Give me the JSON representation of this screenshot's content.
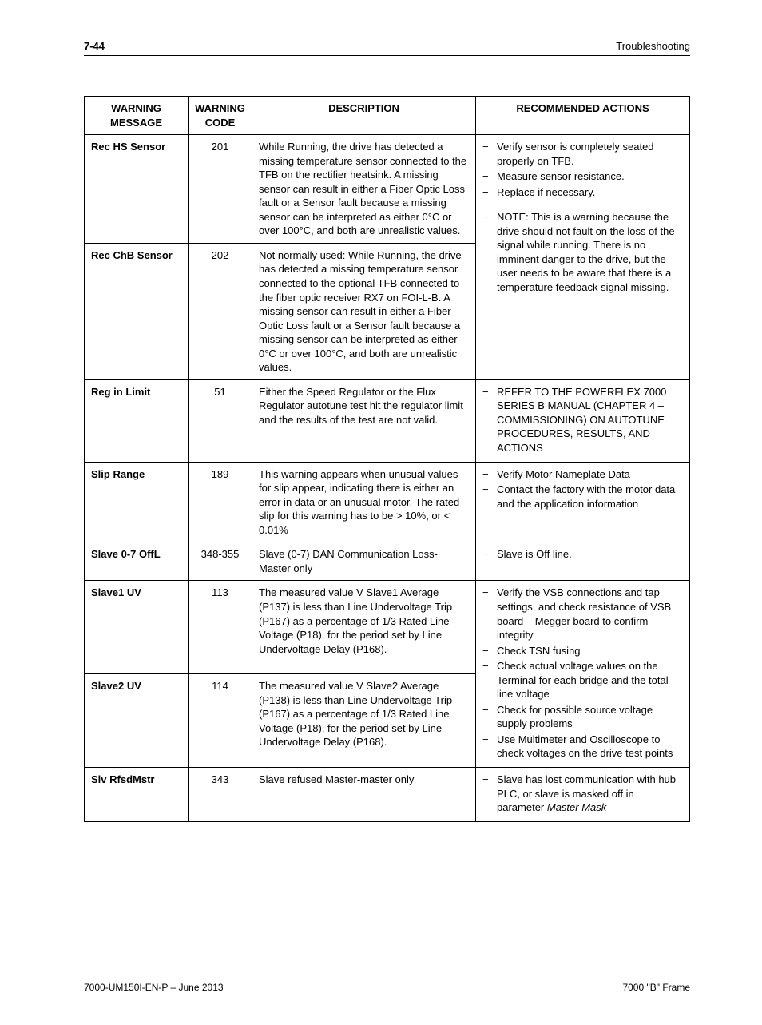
{
  "header": {
    "page_number": "7-44",
    "section_title": "Troubleshooting"
  },
  "table": {
    "columns": [
      "WARNING MESSAGE",
      "WARNING CODE",
      "DESCRIPTION",
      "RECOMMENDED ACTIONS"
    ],
    "rows": [
      {
        "msg": "Rec HS Sensor",
        "code": "201",
        "desc": "While Running, the drive has detected a missing temperature sensor connected to the TFB on the rectifier heatsink.  A missing sensor can result in either a Fiber Optic Loss fault or a Sensor fault because a missing sensor can be interpreted as either 0°C or over 100°C, and both are unrealistic values.",
        "act": [
          "Verify sensor is completely seated properly on TFB.",
          "Measure sensor resistance.",
          " Replace if necessary.",
          "",
          " NOTE: This is a warning because the drive should not fault on the loss of the signal while running.  There is no imminent danger to the drive, but the user needs to be aware that there is a temperature feedback signal missing."
        ],
        "act_rowspan": 2
      },
      {
        "msg": "Rec ChB Sensor",
        "code": "202",
        "desc": "Not normally used:  While Running, the drive has detected a missing temperature sensor connected to the optional TFB connected to the fiber optic receiver RX7 on FOI-L-B.  A missing sensor can result in either a Fiber Optic Loss fault or a Sensor fault because a missing sensor can be interpreted as either 0°C or over 100°C, and both are unrealistic values."
      },
      {
        "msg": "Reg in Limit",
        "code": "51",
        "desc": "Either the Speed Regulator or the Flux Regulator autotune test hit the regulator limit and the results of the test are not valid.",
        "act": [
          " REFER TO THE POWERFLEX 7000 SERIES B MANUAL (CHAPTER 4 – COMMISSIONING) ON AUTOTUNE PROCEDURES, RESULTS, AND ACTIONS"
        ]
      },
      {
        "msg": "Slip Range",
        "code": "189",
        "desc": "This warning appears when unusual values for slip appear, indicating there is either an error in data or an unusual motor.  The rated slip for this warning has to be > 10%, or < 0.01%",
        "act": [
          " Verify Motor Nameplate Data",
          " Contact the factory with the motor data and the application information"
        ]
      },
      {
        "msg": "Slave 0-7 OffL",
        "code": "348-355",
        "desc": "Slave (0-7) DAN Communication Loss-Master only",
        "act": [
          " Slave is Off line."
        ]
      },
      {
        "msg": "Slave1 UV",
        "code": "113",
        "desc": "The measured value V Slave1 Average (P137) is less than Line Undervoltage Trip (P167) as a percentage of 1/3 Rated Line Voltage (P18), for the period set by Line Undervoltage Delay (P168).",
        "act": [
          " Verify the VSB connections and tap settings, and check resistance of VSB board – Megger board to confirm integrity",
          " Check TSN fusing",
          " Check actual voltage values on the Terminal for each bridge and the total line voltage",
          " Check for possible source voltage supply problems",
          " Use Multimeter and Oscilloscope to check voltages on the drive test points"
        ],
        "act_rowspan": 2
      },
      {
        "msg": "Slave2 UV",
        "code": "114",
        "desc": "The measured value V Slave2 Average (P138) is less than Line Undervoltage Trip (P167) as a percentage of 1/3 Rated Line Voltage (P18), for the period set by Line Undervoltage Delay (P168)."
      },
      {
        "msg": "Slv RfsdMstr",
        "code": "343",
        "desc": "Slave refused Master-master only",
        "act_html": "Slave has  lost communication with hub PLC, or slave is masked off in parameter <span class=\"italic\">Master Mask</span>"
      }
    ]
  },
  "footer": {
    "left": "7000-UM150I-EN-P – June 2013",
    "right": "7000 \"B\" Frame"
  }
}
